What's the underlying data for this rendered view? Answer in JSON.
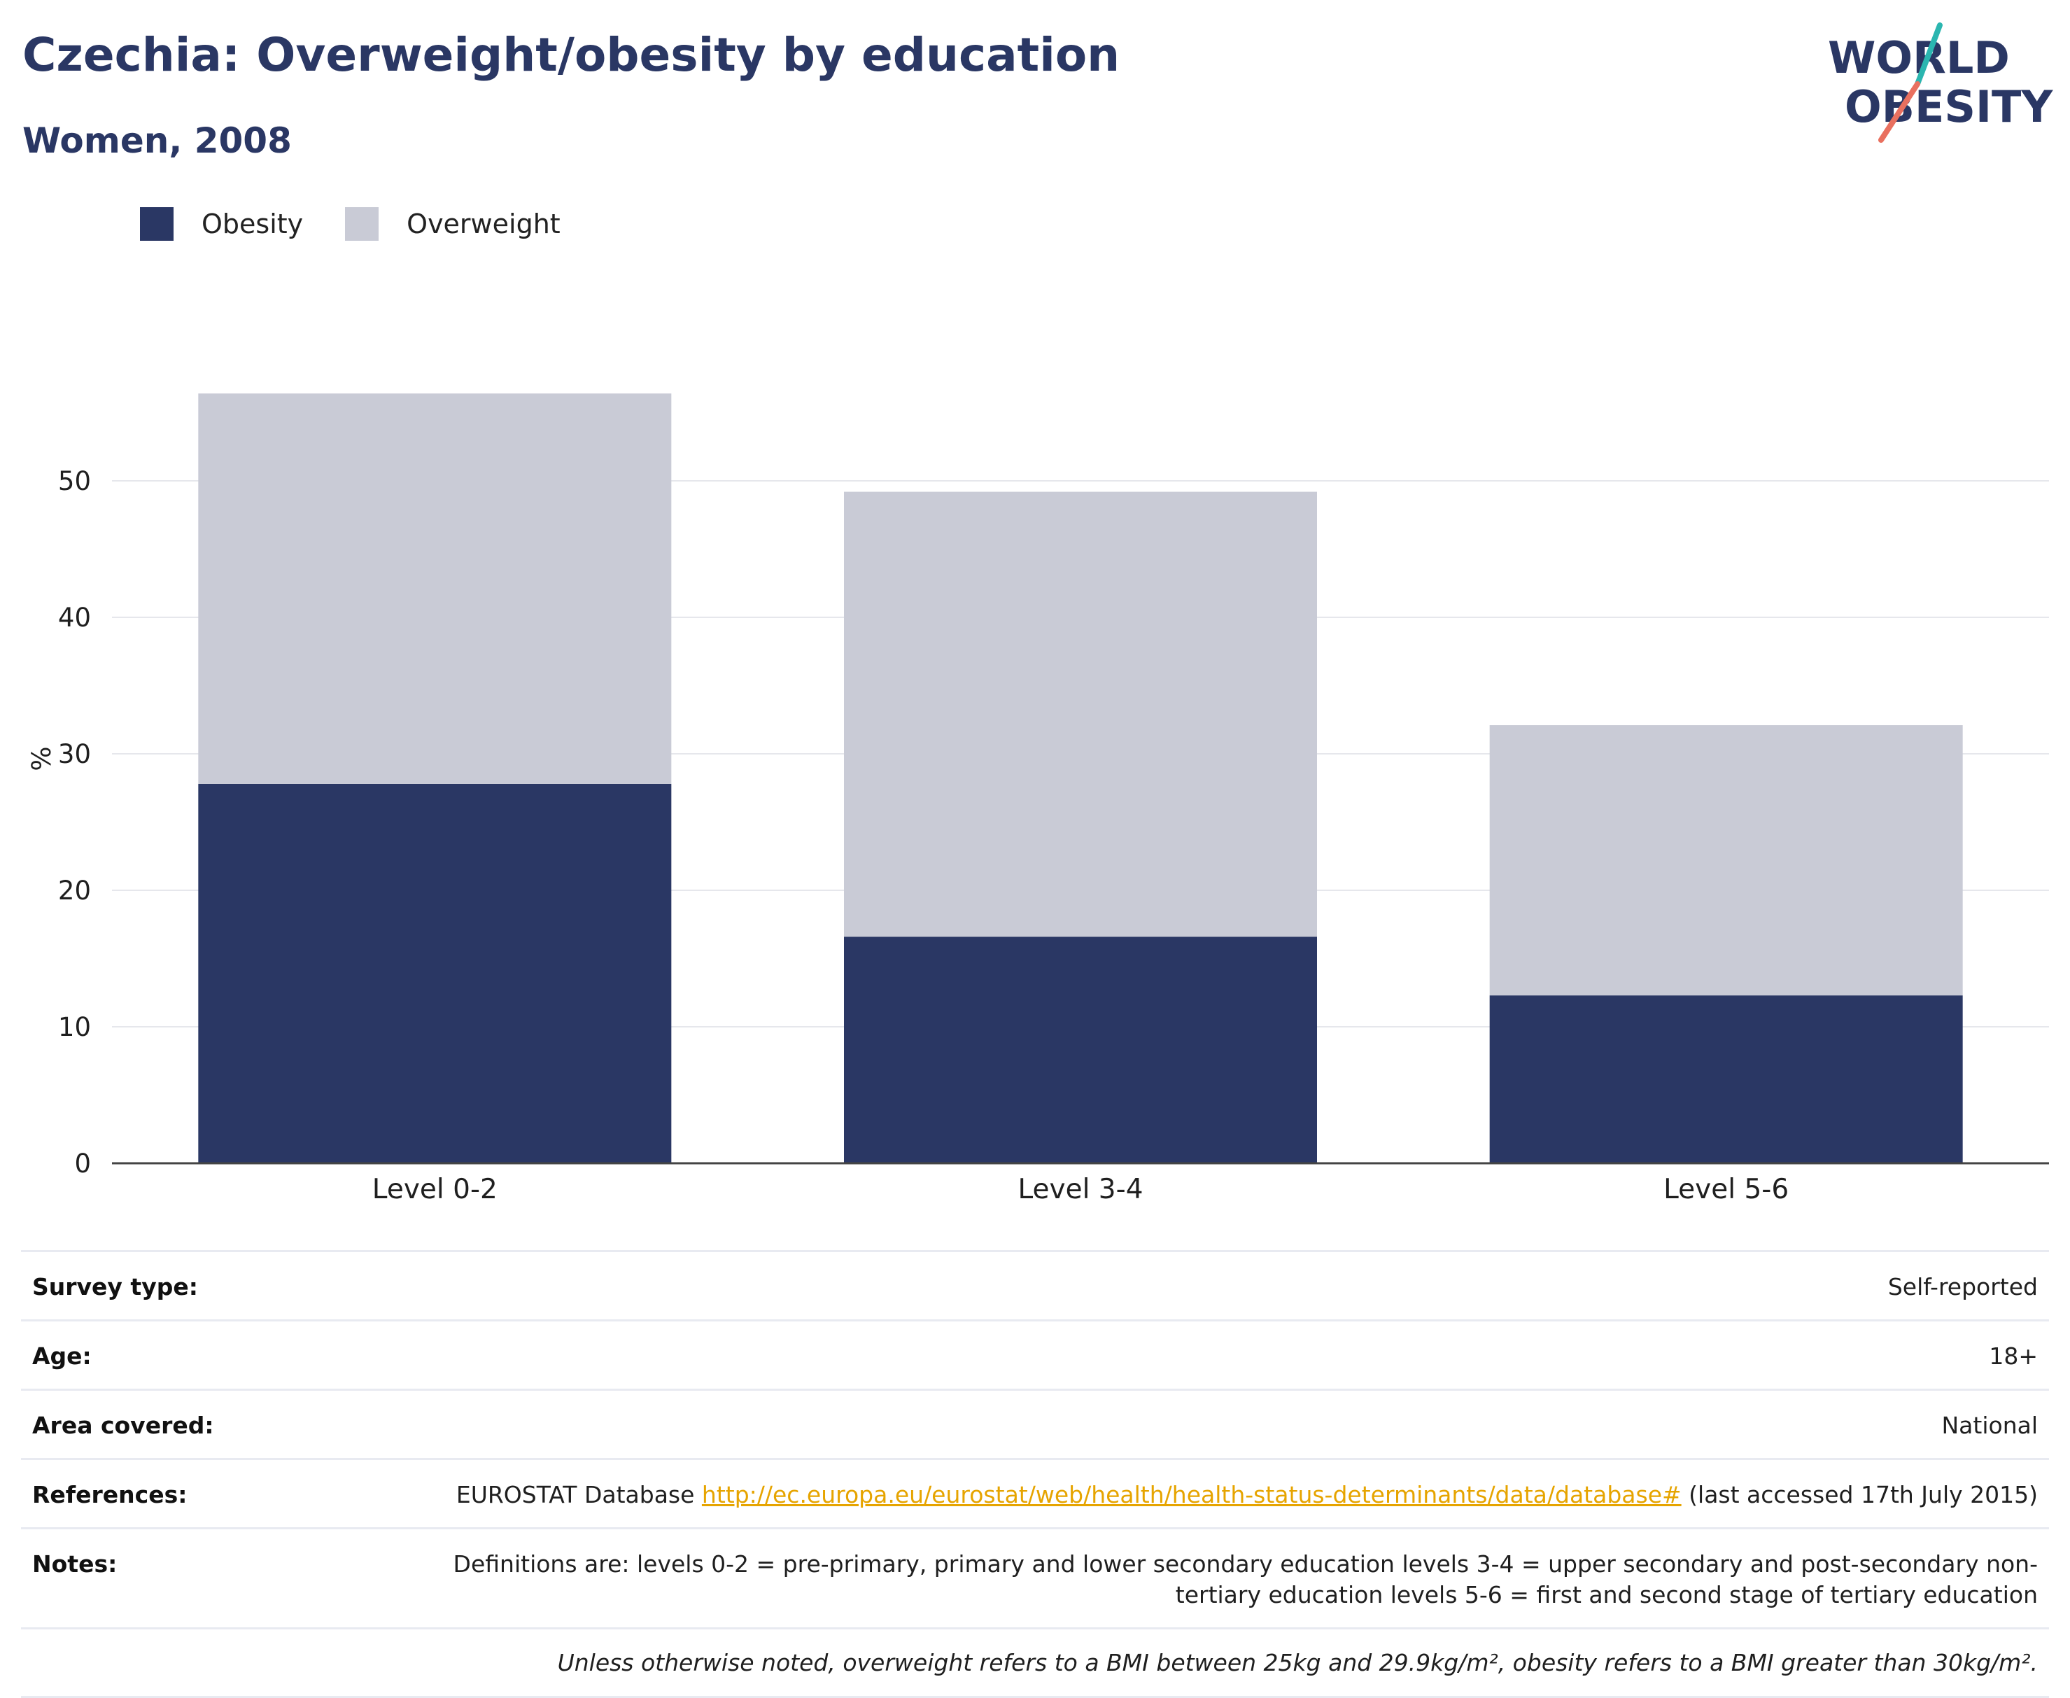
{
  "header": {
    "title": "Czechia: Overweight/obesity by education",
    "subtitle": "Women, 2008"
  },
  "logo": {
    "line1": "WORLD",
    "line2": "OBESITY",
    "colors": {
      "navy": "#2a3764",
      "teal": "#2bb6b0",
      "coral": "#e9705f"
    }
  },
  "legend": [
    {
      "label": "Obesity",
      "color": "#2a3764"
    },
    {
      "label": "Overweight",
      "color": "#c9cbd6"
    }
  ],
  "chart_data": {
    "type": "bar",
    "stacked": true,
    "categories": [
      "Level 0-2",
      "Level 3-4",
      "Level 5-6"
    ],
    "series": [
      {
        "name": "Obesity",
        "color": "#2a3764",
        "values": [
          27.8,
          16.6,
          12.3
        ]
      },
      {
        "name": "Overweight",
        "color": "#c9cbd6",
        "values": [
          28.6,
          32.6,
          19.8
        ]
      }
    ],
    "ylabel": "%",
    "xlabel": "",
    "ylim": [
      0,
      60
    ],
    "yticks": [
      0,
      10,
      20,
      30,
      40,
      50
    ],
    "grid": true,
    "legend_position": "top-left"
  },
  "info": {
    "rows": [
      {
        "label": "Survey type:",
        "value": "Self-reported"
      },
      {
        "label": "Age:",
        "value": "18+"
      },
      {
        "label": "Area covered:",
        "value": "National"
      }
    ],
    "references": {
      "label": "References:",
      "prefix": "EUROSTAT Database ",
      "link": "http://ec.europa.eu/eurostat/web/health/health-status-determinants/data/database#",
      "suffix": " (last accessed 17th July 2015)"
    },
    "notes": {
      "label": "Notes:",
      "value": "Definitions are: levels 0-2 = pre-primary, primary and lower secondary education levels 3-4 = upper secondary and post-secondary non-tertiary education levels 5-6 = first and second stage of tertiary education"
    },
    "footnote": "Unless otherwise noted, overweight refers to a BMI between 25kg and 29.9kg/m², obesity refers to a BMI greater than 30kg/m²."
  }
}
